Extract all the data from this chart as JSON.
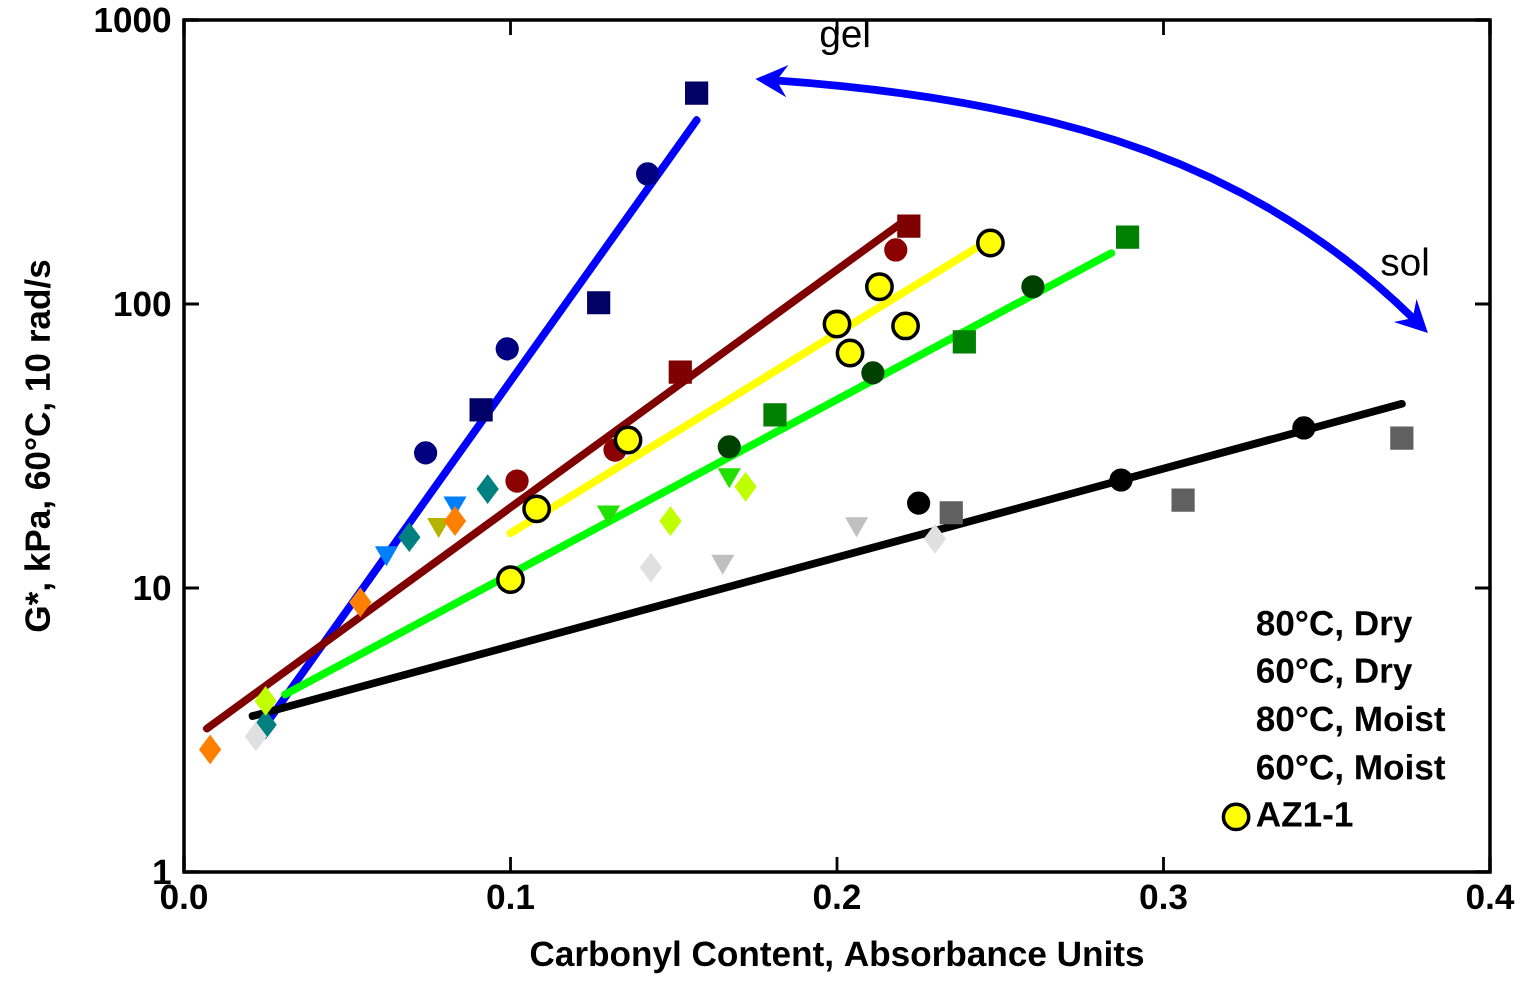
{
  "chart_data": {
    "type": "scatter",
    "xlabel": "Carbonyl Content, Absorbance Units",
    "ylabel": "G*, kPa, 60°C, 10 rad/s",
    "xlim": [
      0,
      0.4
    ],
    "xticks": [
      {
        "value": 0,
        "label": "0.0"
      },
      0.1,
      0.2,
      0.3,
      0.4
    ],
    "ylim": [
      1,
      1000
    ],
    "yticks": [
      1,
      10,
      100,
      1000
    ],
    "log": "y",
    "grid": false,
    "legend": "bottom right",
    "annotations": [
      "gel",
      "sol",
      "80°C, Dry",
      "60°C, Dry",
      "80°C, Moist",
      "60°C, Moist"
    ],
    "series": [
      {
        "type": "line",
        "color": "#0000ff",
        "marker": "none",
        "x": [
          0.026,
          0.157
        ],
        "values": [
          3.43,
          444
        ]
      },
      {
        "type": "line",
        "color": "#800000",
        "marker": "none",
        "x": [
          0.007,
          0.22
        ],
        "values": [
          3.2,
          194
        ]
      },
      {
        "type": "line",
        "color": "#ffff00",
        "marker": "none",
        "x": [
          0.1,
          0.244
        ],
        "values": [
          15.6,
          161
        ]
      },
      {
        "type": "line",
        "color": "#00ff00",
        "marker": "none",
        "x": [
          0.031,
          0.284
        ],
        "values": [
          4.22,
          151
        ]
      },
      {
        "type": "line",
        "color": "#000000",
        "marker": "none",
        "x": [
          0.021,
          0.373
        ],
        "values": [
          3.54,
          44.5
        ]
      },
      {
        "color": "#000066",
        "marker": "square",
        "x": [
          0.157,
          0.127,
          0.091
        ],
        "values": [
          553,
          101,
          42.4
        ]
      },
      {
        "color": "#000080",
        "marker": "circle",
        "x": [
          0.142,
          0.099,
          0.074
        ],
        "values": [
          287,
          69.5,
          29.9
        ]
      },
      {
        "color": "#0080ff",
        "marker": "triangle",
        "x": [
          0.062,
          0.083
        ],
        "values": [
          13.3,
          19.9
        ]
      },
      {
        "color": "#008080",
        "marker": "diamond",
        "x": [
          0.069,
          0.093,
          0.025
        ],
        "values": [
          15.1,
          22.3,
          3.3
        ]
      },
      {
        "color": "#7f0000",
        "marker": "square",
        "x": [
          0.222,
          0.152
        ],
        "values": [
          188,
          57.6
        ]
      },
      {
        "color": "#8b0000",
        "marker": "circle",
        "x": [
          0.218,
          0.102,
          0.132
        ],
        "values": [
          155,
          23.8,
          30.6
        ]
      },
      {
        "color": "#b4b400",
        "marker": "triangle",
        "x": [
          0.078
        ],
        "values": [
          16.7
        ]
      },
      {
        "color": "#ff8000",
        "marker": "diamond",
        "x": [
          0.083,
          0.054,
          0.008
        ],
        "values": [
          17.2,
          8.9,
          2.7
        ]
      },
      {
        "color": "#008000",
        "marker": "square",
        "x": [
          0.289,
          0.239,
          0.181
        ],
        "values": [
          172,
          73.5,
          40.7
        ]
      },
      {
        "color": "#004000",
        "marker": "circle",
        "x": [
          0.26,
          0.211,
          0.167
        ],
        "values": [
          115,
          57.2,
          31.4
        ]
      },
      {
        "color": "#22e000",
        "marker": "triangle",
        "x": [
          0.167,
          0.13
        ],
        "values": [
          25.0,
          18.5
        ]
      },
      {
        "color": "#bfff00",
        "marker": "diamond",
        "x": [
          0.172,
          0.149,
          0.025
        ],
        "values": [
          22.7,
          17.2,
          4.0
        ]
      },
      {
        "color": "#606060",
        "marker": "square",
        "x": [
          0.373,
          0.306,
          0.235
        ],
        "values": [
          33.7,
          20.4,
          18.4
        ]
      },
      {
        "color": "#000000",
        "marker": "circle",
        "x": [
          0.343,
          0.287,
          0.225
        ],
        "values": [
          36.6,
          24.0,
          19.9
        ]
      },
      {
        "color": "#c0c0c0",
        "marker": "triangle",
        "x": [
          0.206,
          0.165
        ],
        "values": [
          16.8,
          12.4
        ]
      },
      {
        "color": "#e0e0e0",
        "marker": "diamond",
        "x": [
          0.23,
          0.143,
          0.022
        ],
        "values": [
          14.9,
          11.8,
          3.0
        ]
      },
      {
        "name": "AZ1-1",
        "color": "#ffff00",
        "marker": "circle",
        "x": [
          0.247,
          0.213,
          0.2,
          0.221,
          0.204,
          0.136,
          0.108,
          0.1
        ],
        "values": [
          164,
          115,
          85,
          83.7,
          67.2,
          33.2,
          19.0,
          10.7
        ]
      }
    ]
  }
}
